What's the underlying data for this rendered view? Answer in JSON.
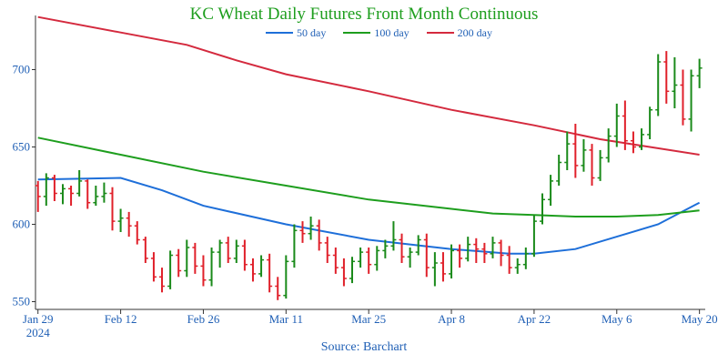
{
  "chart_data": {
    "type": "line",
    "title": "KC Wheat Daily Futures Front Month Continuous",
    "source": "Source: Barchart",
    "ylim": [
      545,
      735
    ],
    "yticks": [
      550,
      600,
      650,
      700
    ],
    "xticks": [
      {
        "label": "Jan 29",
        "sub": "2024",
        "index": 0
      },
      {
        "label": "Feb 12",
        "index": 10
      },
      {
        "label": "Feb 26",
        "index": 20
      },
      {
        "label": "Mar 11",
        "index": 30
      },
      {
        "label": "Mar 25",
        "index": 40
      },
      {
        "label": "Apr 8",
        "index": 50
      },
      {
        "label": "Apr 22",
        "index": 60
      },
      {
        "label": "May 6",
        "index": 70
      },
      {
        "label": "May 20",
        "index": 80
      }
    ],
    "up_color": "#1a8a1a",
    "down_color": "#e0202a",
    "ohlc": [
      [
        625,
        628,
        608,
        618
      ],
      [
        618,
        633,
        612,
        630
      ],
      [
        630,
        632,
        615,
        620
      ],
      [
        620,
        626,
        613,
        623
      ],
      [
        623,
        625,
        612,
        620
      ],
      [
        620,
        635,
        618,
        628
      ],
      [
        628,
        629,
        610,
        614
      ],
      [
        614,
        625,
        612,
        618
      ],
      [
        618,
        627,
        614,
        620
      ],
      [
        620,
        624,
        596,
        602
      ],
      [
        602,
        610,
        595,
        604
      ],
      [
        604,
        608,
        592,
        599
      ],
      [
        599,
        602,
        587,
        590
      ],
      [
        590,
        592,
        575,
        578
      ],
      [
        578,
        582,
        563,
        566
      ],
      [
        566,
        572,
        556,
        560
      ],
      [
        560,
        583,
        558,
        580
      ],
      [
        580,
        584,
        566,
        570
      ],
      [
        570,
        590,
        566,
        585
      ],
      [
        585,
        588,
        568,
        573
      ],
      [
        573,
        580,
        560,
        564
      ],
      [
        564,
        585,
        560,
        582
      ],
      [
        582,
        590,
        572,
        588
      ],
      [
        588,
        592,
        575,
        578
      ],
      [
        578,
        590,
        575,
        586
      ],
      [
        586,
        590,
        570,
        574
      ],
      [
        574,
        578,
        563,
        568
      ],
      [
        568,
        580,
        566,
        577
      ],
      [
        577,
        581,
        556,
        560
      ],
      [
        560,
        566,
        551,
        554
      ],
      [
        554,
        580,
        552,
        576
      ],
      [
        576,
        600,
        572,
        596
      ],
      [
        596,
        602,
        588,
        594
      ],
      [
        594,
        605,
        590,
        599
      ],
      [
        599,
        603,
        583,
        588
      ],
      [
        588,
        592,
        575,
        580
      ],
      [
        580,
        585,
        568,
        572
      ],
      [
        572,
        578,
        560,
        565
      ],
      [
        565,
        579,
        562,
        576
      ],
      [
        576,
        585,
        572,
        582
      ],
      [
        582,
        585,
        568,
        574
      ],
      [
        574,
        586,
        570,
        583
      ],
      [
        583,
        590,
        578,
        586
      ],
      [
        586,
        602,
        583,
        590
      ],
      [
        590,
        594,
        575,
        579
      ],
      [
        579,
        585,
        572,
        582
      ],
      [
        582,
        593,
        580,
        590
      ],
      [
        590,
        594,
        566,
        572
      ],
      [
        572,
        582,
        560,
        575
      ],
      [
        575,
        582,
        563,
        568
      ],
      [
        568,
        587,
        565,
        583
      ],
      [
        583,
        587,
        572,
        578
      ],
      [
        578,
        592,
        576,
        587
      ],
      [
        587,
        591,
        575,
        584
      ],
      [
        584,
        588,
        575,
        581
      ],
      [
        581,
        592,
        578,
        588
      ],
      [
        588,
        590,
        573,
        580
      ],
      [
        580,
        586,
        568,
        572
      ],
      [
        572,
        578,
        568,
        574
      ],
      [
        574,
        585,
        571,
        581
      ],
      [
        581,
        606,
        579,
        602
      ],
      [
        602,
        620,
        600,
        616
      ],
      [
        616,
        632,
        612,
        628
      ],
      [
        628,
        645,
        625,
        640
      ],
      [
        640,
        660,
        635,
        652
      ],
      [
        652,
        665,
        630,
        638
      ],
      [
        638,
        655,
        634,
        648
      ],
      [
        648,
        652,
        625,
        630
      ],
      [
        630,
        648,
        628,
        643
      ],
      [
        643,
        662,
        640,
        657
      ],
      [
        657,
        678,
        650,
        670
      ],
      [
        670,
        680,
        648,
        654
      ],
      [
        654,
        660,
        646,
        650
      ],
      [
        650,
        662,
        648,
        658
      ],
      [
        658,
        676,
        655,
        674
      ],
      [
        674,
        710,
        670,
        705
      ],
      [
        705,
        712,
        678,
        686
      ],
      [
        686,
        708,
        675,
        690
      ],
      [
        690,
        700,
        664,
        668
      ],
      [
        668,
        700,
        660,
        696
      ],
      [
        696,
        707,
        688,
        701
      ]
    ],
    "series": [
      {
        "name": "50 day",
        "color": "#1e6fd9",
        "points": [
          [
            0,
            629
          ],
          [
            10,
            630
          ],
          [
            15,
            622
          ],
          [
            20,
            612
          ],
          [
            30,
            600
          ],
          [
            40,
            590
          ],
          [
            50,
            584
          ],
          [
            57,
            581
          ],
          [
            60,
            581
          ],
          [
            65,
            584
          ],
          [
            70,
            592
          ],
          [
            75,
            600
          ],
          [
            80,
            614
          ]
        ]
      },
      {
        "name": "100 day",
        "color": "#1e9e1e",
        "points": [
          [
            0,
            656
          ],
          [
            10,
            645
          ],
          [
            20,
            634
          ],
          [
            30,
            625
          ],
          [
            40,
            616
          ],
          [
            50,
            610
          ],
          [
            55,
            607
          ],
          [
            60,
            606
          ],
          [
            65,
            605
          ],
          [
            70,
            605
          ],
          [
            75,
            606
          ],
          [
            80,
            609
          ]
        ]
      },
      {
        "name": "200 day",
        "color": "#d42a3e",
        "points": [
          [
            0,
            734
          ],
          [
            10,
            724
          ],
          [
            18,
            716
          ],
          [
            24,
            706
          ],
          [
            30,
            697
          ],
          [
            40,
            686
          ],
          [
            50,
            674
          ],
          [
            60,
            664
          ],
          [
            68,
            655
          ],
          [
            74,
            650
          ],
          [
            80,
            645
          ]
        ]
      }
    ]
  }
}
